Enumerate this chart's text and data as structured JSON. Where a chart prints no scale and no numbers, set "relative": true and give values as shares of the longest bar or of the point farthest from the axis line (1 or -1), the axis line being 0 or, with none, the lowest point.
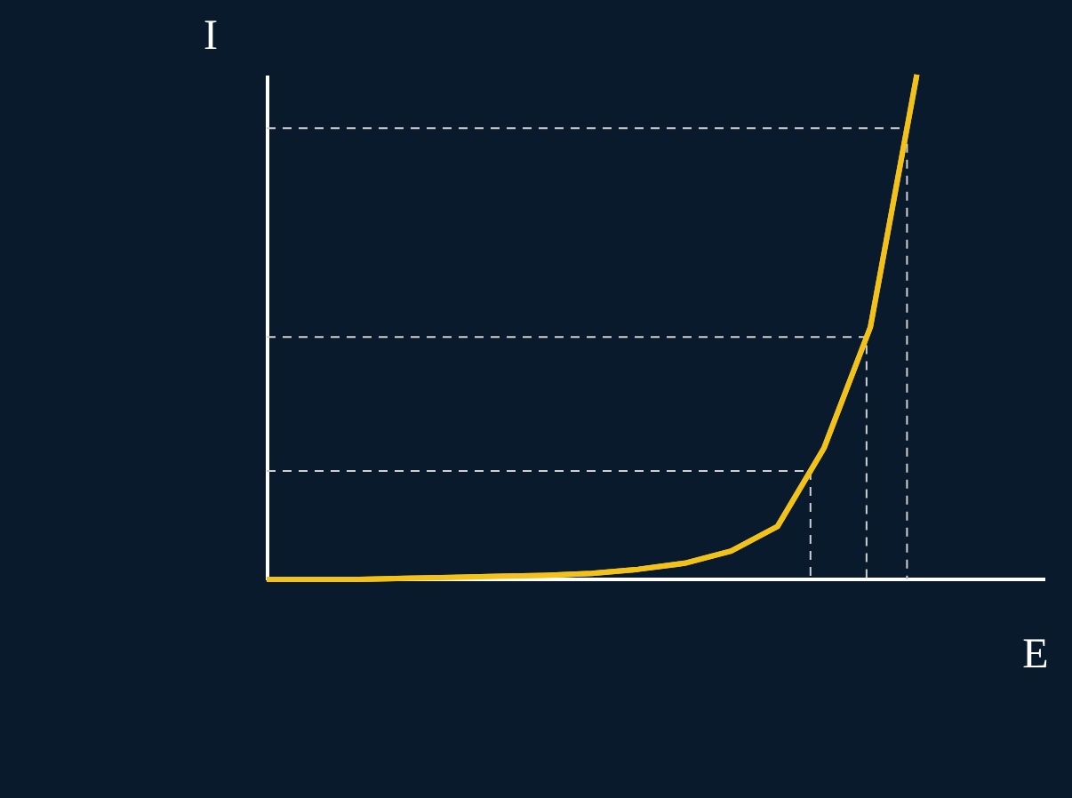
{
  "chart_data": {
    "type": "line",
    "relative": true,
    "xlabel": "E",
    "ylabel": "I",
    "marker": "none",
    "line_style": "solid",
    "categories": [
      null,
      null,
      null,
      null,
      null,
      null,
      null,
      null,
      null,
      null,
      null,
      null,
      null,
      null,
      null
    ],
    "series": [
      {
        "color": "#f2c21b",
        "values": [
          0,
          0,
          0,
          0.002,
          0.004,
          0.006,
          0.008,
          0.012,
          0.02,
          0.032,
          0.056,
          0.105,
          0.26,
          0.5,
          1
        ]
      }
    ],
    "ref_lines": [
      {
        "axis": "y",
        "value": 0.215,
        "color": "#cfcfcf",
        "line_style": "dashed"
      },
      {
        "axis": "y",
        "value": 0.48,
        "color": "#cfcfcf",
        "line_style": "dashed"
      },
      {
        "axis": "y",
        "value": 0.894,
        "color": "#cfcfcf",
        "line_style": "dashed"
      }
    ]
  }
}
